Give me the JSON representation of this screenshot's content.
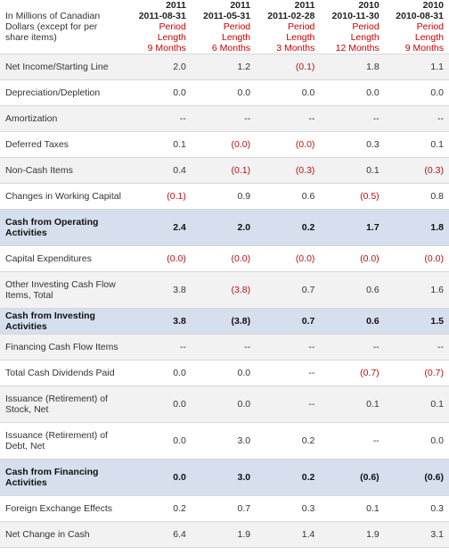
{
  "header": {
    "units": "In Millions of Canadian Dollars (except for per share items)",
    "columns": [
      {
        "year": "2011",
        "date": "2011-08-31",
        "period_label": "Period Length",
        "period": "9 Months"
      },
      {
        "year": "2011",
        "date": "2011-05-31",
        "period_label": "Period Length",
        "period": "6 Months"
      },
      {
        "year": "2011",
        "date": "2011-02-28",
        "period_label": "Period Length",
        "period": "3 Months"
      },
      {
        "year": "2010",
        "date": "2010-11-30",
        "period_label": "Period Length",
        "period": "12 Months"
      },
      {
        "year": "2010",
        "date": "2010-08-31",
        "period_label": "Period Length",
        "period": "9 Months"
      }
    ]
  },
  "rows": [
    {
      "label": "Net Income/Starting Line",
      "values": [
        "2.0",
        "1.2",
        "(0.1)",
        "1.8",
        "1.1"
      ]
    },
    {
      "label": "Depreciation/Depletion",
      "values": [
        "0.0",
        "0.0",
        "0.0",
        "0.0",
        "0.0"
      ]
    },
    {
      "label": "Amortization",
      "values": [
        "--",
        "--",
        "--",
        "--",
        "--"
      ]
    },
    {
      "label": "Deferred Taxes",
      "values": [
        "0.1",
        "(0.0)",
        "(0.0)",
        "0.3",
        "0.1"
      ]
    },
    {
      "label": "Non-Cash Items",
      "values": [
        "0.4",
        "(0.1)",
        "(0.3)",
        "0.1",
        "(0.3)"
      ]
    },
    {
      "label": "Changes in Working Capital",
      "values": [
        "(0.1)",
        "0.9",
        "0.6",
        "(0.5)",
        "0.8"
      ]
    },
    {
      "label": "Cash from Operating Activities",
      "values": [
        "2.4",
        "2.0",
        "0.2",
        "1.7",
        "1.8"
      ]
    },
    {
      "label": "Capital Expenditures",
      "values": [
        "(0.0)",
        "(0.0)",
        "(0.0)",
        "(0.0)",
        "(0.0)"
      ]
    },
    {
      "label": "Other Investing Cash Flow Items, Total",
      "values": [
        "3.8",
        "(3.8)",
        "0.7",
        "0.6",
        "1.6"
      ]
    },
    {
      "label": "Cash from Investing Activities",
      "values": [
        "3.8",
        "(3.8)",
        "0.7",
        "0.6",
        "1.5"
      ]
    },
    {
      "label": "Financing Cash Flow Items",
      "values": [
        "--",
        "--",
        "--",
        "--",
        "--"
      ]
    },
    {
      "label": "Total Cash Dividends Paid",
      "values": [
        "0.0",
        "0.0",
        "--",
        "(0.7)",
        "(0.7)"
      ]
    },
    {
      "label": "Issuance (Retirement) of Stock, Net",
      "values": [
        "0.0",
        "0.0",
        "--",
        "0.1",
        "0.1"
      ]
    },
    {
      "label": "Issuance (Retirement) of Debt, Net",
      "values": [
        "0.0",
        "3.0",
        "0.2",
        "--",
        "0.0"
      ]
    },
    {
      "label": "Cash from Financing Activities",
      "values": [
        "0.0",
        "3.0",
        "0.2",
        "(0.6)",
        "(0.6)"
      ]
    },
    {
      "label": "Foreign Exchange Effects",
      "values": [
        "0.2",
        "0.7",
        "0.3",
        "0.1",
        "0.3"
      ]
    },
    {
      "label": "Net Change in Cash",
      "values": [
        "6.4",
        "1.9",
        "1.4",
        "1.9",
        "3.1"
      ]
    }
  ]
}
